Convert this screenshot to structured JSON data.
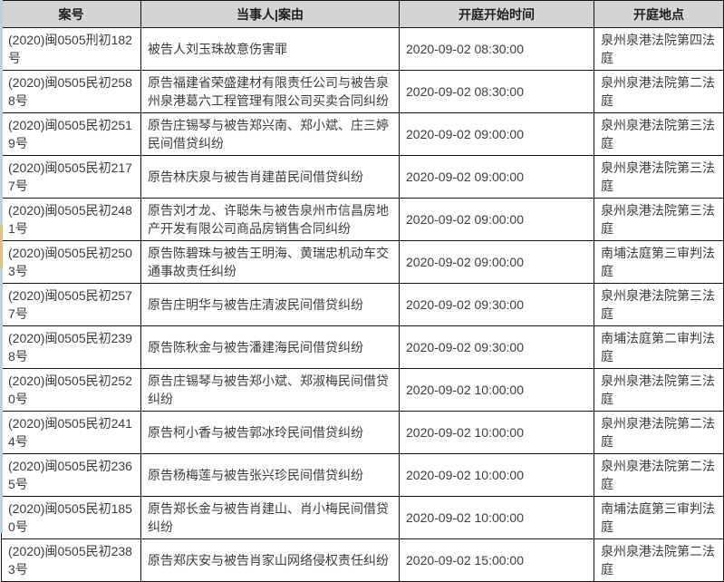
{
  "table": {
    "columns": [
      {
        "key": "case_no",
        "label": "案号"
      },
      {
        "key": "parties",
        "label": "当事人|案由"
      },
      {
        "key": "start_time",
        "label": "开庭开始时间"
      },
      {
        "key": "location",
        "label": "开庭地点"
      }
    ],
    "rows": [
      {
        "case_no": "(2020)闽0505刑初182号",
        "parties": "被告人刘玉珠故意伤害罪",
        "start_time": "2020-09-02 08:30:00",
        "location": "泉州泉港法院第四法庭"
      },
      {
        "case_no": "(2020)闽0505民初2588号",
        "parties": "原告福建省荣盛建材有限责任公司与被告泉州泉港葛六工程管理有限公司买卖合同纠纷",
        "start_time": "2020-09-02 08:30:00",
        "location": "泉州泉港法院第二法庭"
      },
      {
        "case_no": "(2020)闽0505民初2519号",
        "parties": "原告庄锡琴与被告郑兴南、郑小斌、庄三婷民间借贷纠纷",
        "start_time": "2020-09-02 09:00:00",
        "location": "泉州泉港法院第三法庭"
      },
      {
        "case_no": "(2020)闽0505民初2177号",
        "parties": "原告林庆泉与被告肖建苗民间借贷纠纷",
        "start_time": "2020-09-02 09:00:00",
        "location": "泉州泉港法院第三法庭"
      },
      {
        "case_no": "(2020)闽0505民初2481号",
        "parties": "原告刘才龙、许聪朱与被告泉州市信昌房地产开发有限公司商品房销售合同纠纷",
        "start_time": "2020-09-02 09:00:00",
        "location": "泉州泉港法院第三法庭"
      },
      {
        "case_no": "(2020)闽0505民初2503号",
        "parties": "原告陈碧珠与被告王明海、黄瑞忠机动车交通事故责任纠纷",
        "start_time": "2020-09-02 09:00:00",
        "location": "南埔法庭第三审判法庭"
      },
      {
        "case_no": "(2020)闽0505民初2577号",
        "parties": "原告庄明华与被告庄清波民间借贷纠纷",
        "start_time": "2020-09-02 09:30:00",
        "location": "泉州泉港法院第三法庭"
      },
      {
        "case_no": "(2020)闽0505民初2398号",
        "parties": "原告陈秋金与被告潘建海民间借贷纠纷",
        "start_time": "2020-09-02 09:30:00",
        "location": "南埔法庭第二审判法庭"
      },
      {
        "case_no": "(2020)闽0505民初2520号",
        "parties": "原告庄锡琴与被告郑小斌、郑淑梅民间借贷纠纷",
        "start_time": "2020-09-02 10:00:00",
        "location": "泉州泉港法院第三法庭"
      },
      {
        "case_no": "(2020)闽0505民初2414号",
        "parties": "原告柯小香与被告郭冰玲民间借贷纠纷",
        "start_time": "2020-09-02 10:00:00",
        "location": "泉州泉港法院第二法庭"
      },
      {
        "case_no": "(2020)闽0505民初2365号",
        "parties": "原告杨梅莲与被告张兴珍民间借贷纠纷",
        "start_time": "2020-09-02 10:00:00",
        "location": "泉州泉港法院第二法庭"
      },
      {
        "case_no": "(2020)闽0505民初1850号",
        "parties": "原告郑长金与被告肖建山、肖小梅民间借贷纠纷",
        "start_time": "2020-09-02 10:00:00",
        "location": "南埔法庭第三审判法庭"
      },
      {
        "case_no": "(2020)闽0505民初2383号",
        "parties": "原告郑庆安与被告肖家山网络侵权责任纠纷",
        "start_time": "2020-09-02 15:00:00",
        "location": "泉州泉港法院第二法庭"
      }
    ]
  },
  "colors": {
    "header_bg": "#d4d4d4",
    "border": "#141414",
    "text": "#3c3c3c",
    "edge_strip_blue": "#b9d2e8",
    "edge_strip_orange": "#f0bc71"
  }
}
